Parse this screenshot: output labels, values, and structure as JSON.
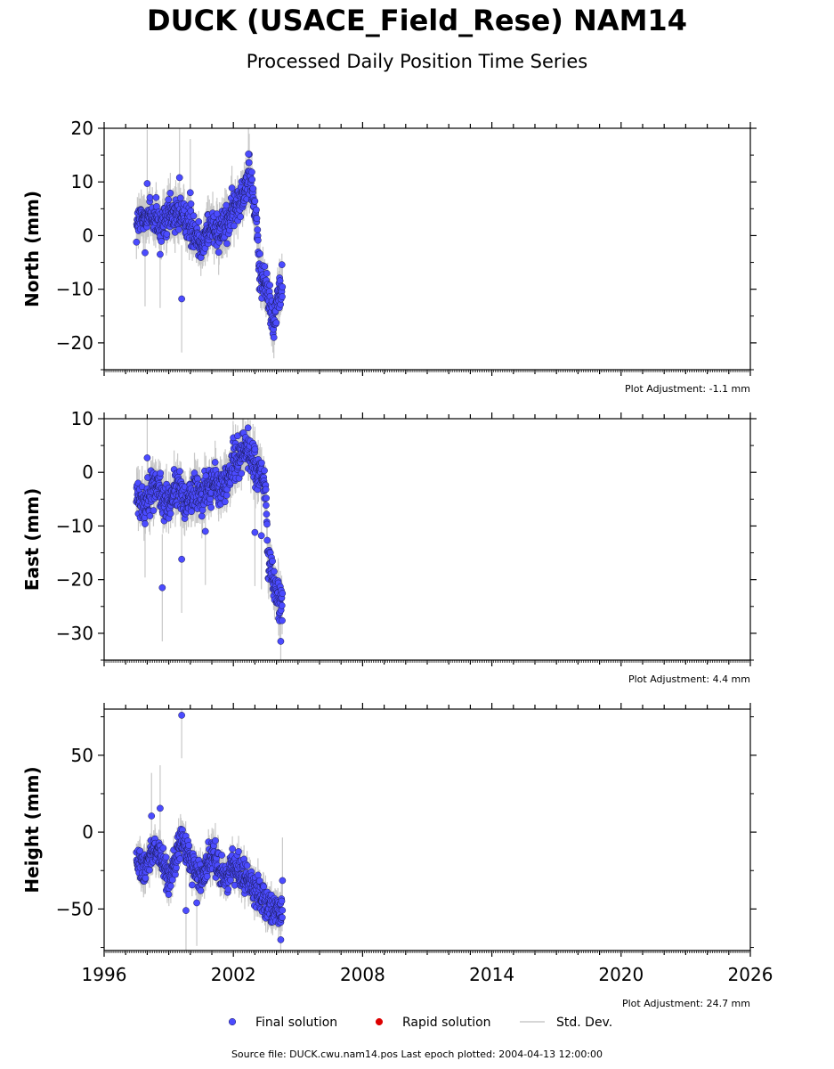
{
  "title": "DUCK (USACE_Field_Rese) NAM14",
  "subtitle": "Processed Daily Position Time Series",
  "source_line": "Source file: DUCK.cwu.nam14.pos  Last epoch plotted: 2004-04-13 12:00:00",
  "colors": {
    "final": "#4b4bff",
    "rapid": "#dd0000",
    "stddev": "#c8c8c8"
  },
  "legend": [
    {
      "label": "Final solution",
      "kind": "final"
    },
    {
      "label": "Rapid solution",
      "kind": "rapid"
    },
    {
      "label": "Std. Dev.",
      "kind": "stddev"
    }
  ],
  "chart_data": [
    {
      "type": "scatter",
      "ylabel": "North (mm)",
      "adjustment": "Plot Adjustment: -1.1 mm",
      "xlim": [
        1996,
        2026
      ],
      "ylim": [
        -25,
        20
      ],
      "yticks": [
        20,
        10,
        0,
        -10,
        -20
      ],
      "ytick_labels": [
        "20",
        "10",
        "0",
        "−10",
        "−20"
      ],
      "key": [
        [
          1997.5,
          2
        ],
        [
          1997.8,
          3
        ],
        [
          1998.1,
          4
        ],
        [
          1998.4,
          3
        ],
        [
          1998.6,
          1
        ],
        [
          1998.9,
          3
        ],
        [
          1999.2,
          4
        ],
        [
          1999.5,
          4
        ],
        [
          1999.8,
          3
        ],
        [
          2000.0,
          2
        ],
        [
          2000.3,
          0
        ],
        [
          2000.55,
          -2
        ],
        [
          2000.8,
          1
        ],
        [
          2001.1,
          2
        ],
        [
          2001.3,
          1
        ],
        [
          2001.6,
          2
        ],
        [
          2001.9,
          4
        ],
        [
          2002.2,
          6
        ],
        [
          2002.5,
          9
        ],
        [
          2002.75,
          11
        ],
        [
          2002.9,
          8
        ],
        [
          2003.0,
          4
        ],
        [
          2003.12,
          1
        ],
        [
          2003.2,
          -7
        ],
        [
          2003.4,
          -8
        ],
        [
          2003.6,
          -11
        ],
        [
          2003.75,
          -14
        ],
        [
          2003.9,
          -16
        ],
        [
          2004.05,
          -12
        ],
        [
          2004.2,
          -10
        ],
        [
          2004.28,
          -9
        ]
      ],
      "noise": 2.5,
      "outliers": [
        [
          1998.0,
          9.7
        ],
        [
          1999.5,
          10.8
        ],
        [
          1999.6,
          -11.8
        ],
        [
          1998.6,
          -3.5
        ],
        [
          1997.9,
          -3.2
        ],
        [
          2000.0,
          8.0
        ],
        [
          2002.7,
          15.2
        ]
      ]
    },
    {
      "type": "scatter",
      "ylabel": "East (mm)",
      "adjustment": "Plot Adjustment: 4.4 mm",
      "xlim": [
        1996,
        2026
      ],
      "ylim": [
        -35,
        10
      ],
      "yticks": [
        10,
        0,
        -10,
        -20,
        -30
      ],
      "ytick_labels": [
        "10",
        "0",
        "−10",
        "−20",
        "−30"
      ],
      "key": [
        [
          1997.5,
          -3
        ],
        [
          1997.8,
          -6
        ],
        [
          1998.1,
          -4
        ],
        [
          1998.4,
          -2
        ],
        [
          1998.7,
          -5
        ],
        [
          1999.0,
          -6
        ],
        [
          1999.3,
          -3
        ],
        [
          1999.6,
          -4
        ],
        [
          1999.9,
          -6
        ],
        [
          2000.2,
          -3
        ],
        [
          2000.5,
          -4
        ],
        [
          2000.8,
          -3
        ],
        [
          2001.1,
          -2
        ],
        [
          2001.4,
          -3
        ],
        [
          2001.7,
          -2
        ],
        [
          2002.0,
          2
        ],
        [
          2002.3,
          3
        ],
        [
          2002.6,
          5
        ],
        [
          2002.9,
          2
        ],
        [
          2003.1,
          0
        ],
        [
          2003.3,
          -1
        ],
        [
          2003.5,
          -3
        ],
        [
          2003.6,
          -16
        ],
        [
          2003.75,
          -18
        ],
        [
          2003.9,
          -21
        ],
        [
          2004.05,
          -23
        ],
        [
          2004.2,
          -24
        ],
        [
          2004.28,
          -25
        ]
      ],
      "noise": 2.5,
      "outliers": [
        [
          1998.0,
          2.7
        ],
        [
          1998.7,
          -21.5
        ],
        [
          1999.6,
          -16.2
        ],
        [
          2000.7,
          -11.0
        ],
        [
          2003.0,
          -11.2
        ],
        [
          2003.3,
          -11.8
        ],
        [
          1997.9,
          -9.6
        ],
        [
          2004.2,
          -31.5
        ]
      ]
    },
    {
      "type": "scatter",
      "ylabel": "Height (mm)",
      "adjustment": "Plot Adjustment: 24.7 mm",
      "xlim": [
        1996,
        2026
      ],
      "ylim": [
        -77,
        80
      ],
      "yticks": [
        50,
        0,
        -50
      ],
      "ytick_labels": [
        "50",
        "0",
        "−50"
      ],
      "xticks": [
        1996,
        2002,
        2008,
        2014,
        2020,
        2026
      ],
      "xtick_labels": [
        "1996",
        "2002",
        "2008",
        "2014",
        "2020",
        "2026"
      ],
      "key": [
        [
          1997.5,
          -15
        ],
        [
          1997.8,
          -25
        ],
        [
          1998.1,
          -15
        ],
        [
          1998.4,
          -10
        ],
        [
          1998.7,
          -20
        ],
        [
          1999.0,
          -30
        ],
        [
          1999.3,
          -20
        ],
        [
          1999.6,
          -5
        ],
        [
          1999.9,
          -15
        ],
        [
          2000.2,
          -25
        ],
        [
          2000.5,
          -30
        ],
        [
          2000.8,
          -20
        ],
        [
          2001.1,
          -15
        ],
        [
          2001.4,
          -25
        ],
        [
          2001.7,
          -30
        ],
        [
          2002.0,
          -20
        ],
        [
          2002.3,
          -25
        ],
        [
          2002.6,
          -30
        ],
        [
          2002.9,
          -35
        ],
        [
          2003.2,
          -40
        ],
        [
          2003.5,
          -45
        ],
        [
          2003.8,
          -50
        ],
        [
          2004.1,
          -55
        ],
        [
          2004.28,
          -52
        ]
      ],
      "noise": 7,
      "outliers": [
        [
          1999.6,
          76
        ],
        [
          1998.6,
          15.5
        ],
        [
          1998.2,
          10.5
        ],
        [
          1999.8,
          -51
        ],
        [
          2000.3,
          -46
        ],
        [
          2004.28,
          -31.5
        ],
        [
          2004.2,
          -70
        ]
      ]
    }
  ]
}
